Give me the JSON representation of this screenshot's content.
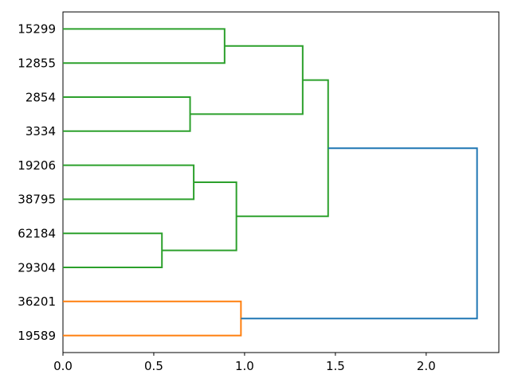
{
  "chart_data": {
    "type": "dendrogram",
    "orientation": "leaves-left-root-right",
    "title": "",
    "xlabel": "",
    "ylabel": "",
    "grid": false,
    "leaf_labels": [
      "15299",
      "12855",
      "2854",
      "3334",
      "19206",
      "38795",
      "62184",
      "29304",
      "36201",
      "19589"
    ],
    "x_axis": {
      "tick_labels": [
        "0.0",
        "0.5",
        "1.0",
        "1.5",
        "2.0"
      ],
      "tick_values": [
        0,
        0.5,
        1.0,
        1.5,
        2.0
      ],
      "range_min": 0,
      "range_max": 2.4
    },
    "links": [
      {
        "color_key": "green",
        "children_pos": [
          0,
          1
        ],
        "children_heights": [
          0,
          0
        ],
        "merge_height": 0.89
      },
      {
        "color_key": "green",
        "children_pos": [
          2,
          3
        ],
        "children_heights": [
          0,
          0
        ],
        "merge_height": 0.7
      },
      {
        "color_key": "green",
        "children_pos": [
          0.5,
          2.5
        ],
        "children_heights": [
          0.89,
          0.7
        ],
        "merge_height": 1.32
      },
      {
        "color_key": "green",
        "children_pos": [
          4,
          5
        ],
        "children_heights": [
          0,
          0
        ],
        "merge_height": 0.72
      },
      {
        "color_key": "green",
        "children_pos": [
          6,
          7
        ],
        "children_heights": [
          0,
          0
        ],
        "merge_height": 0.545
      },
      {
        "color_key": "green",
        "children_pos": [
          4.5,
          6.5
        ],
        "children_heights": [
          0.72,
          0.545
        ],
        "merge_height": 0.955
      },
      {
        "color_key": "green",
        "children_pos": [
          1.5,
          5.5
        ],
        "children_heights": [
          1.32,
          0.955
        ],
        "merge_height": 1.46
      },
      {
        "color_key": "orange",
        "children_pos": [
          8,
          9
        ],
        "children_heights": [
          0,
          0
        ],
        "merge_height": 0.98
      },
      {
        "color_key": "blue",
        "children_pos": [
          3.5,
          8.5
        ],
        "children_heights": [
          1.46,
          0.98
        ],
        "merge_height": 2.28
      }
    ],
    "colors": {
      "green": "#2ca02c",
      "orange": "#ff7f0e",
      "blue": "#1f77b4",
      "axis": "#000000",
      "text": "#000000",
      "background": "#ffffff"
    }
  }
}
